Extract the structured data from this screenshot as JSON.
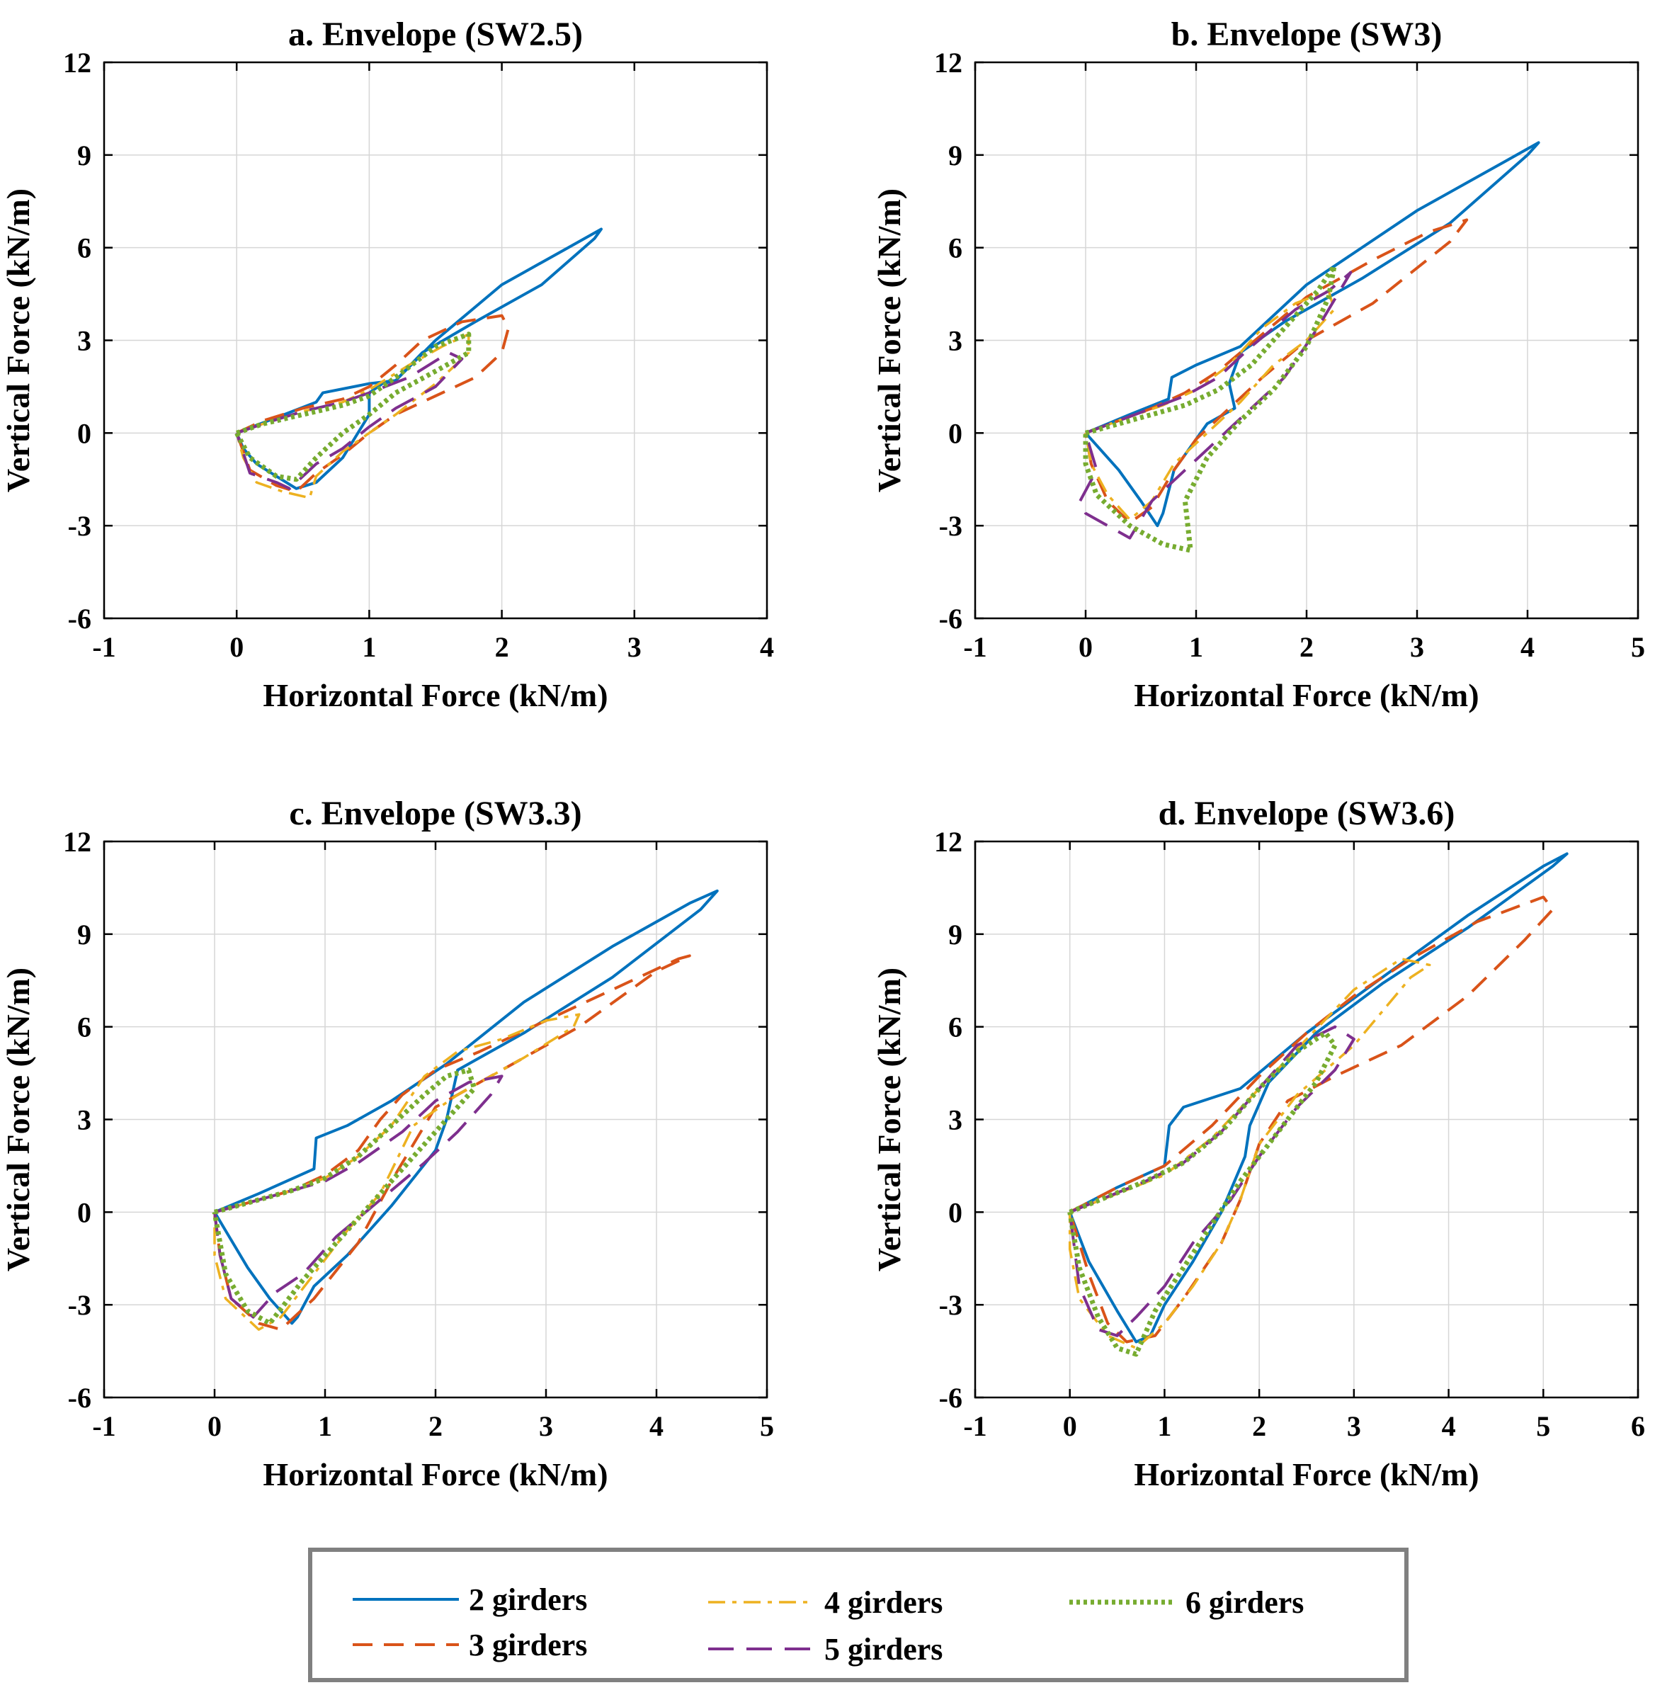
{
  "chart_data": [
    {
      "type": "line",
      "title": "a. Envelope (SW2.5)",
      "xlabel": "Horizontal Force (kN/m)",
      "ylabel": "Vertical Force (kN/m)",
      "xlim": [
        -1,
        4
      ],
      "ylim": [
        -6,
        12
      ],
      "xticks": [
        -1,
        0,
        1,
        2,
        3,
        4
      ],
      "yticks": [
        -6,
        -3,
        0,
        3,
        6,
        9,
        12
      ],
      "grid": true,
      "series": [
        {
          "name": "2 girders",
          "x": [
            0,
            0.3,
            0.6,
            0.65,
            1.0,
            1.2,
            1.5,
            2.0,
            2.5,
            2.75,
            2.7,
            2.3,
            1.8,
            1.4,
            1.2,
            1.1,
            1.0,
            1.0,
            0.8,
            0.6,
            0.45,
            0.3,
            0.15,
            0.05,
            0
          ],
          "y": [
            0,
            0.5,
            1.0,
            1.3,
            1.6,
            1.7,
            3.0,
            4.8,
            6.0,
            6.6,
            6.3,
            4.8,
            3.6,
            2.6,
            1.7,
            1.6,
            1.3,
            0.6,
            -0.8,
            -1.6,
            -1.8,
            -1.4,
            -1.0,
            -0.5,
            0
          ]
        },
        {
          "name": "3 girders",
          "x": [
            0,
            0.2,
            0.5,
            0.8,
            1.0,
            1.2,
            1.4,
            1.7,
            2.0,
            2.05,
            2.0,
            1.8,
            1.5,
            1.2,
            1.0,
            0.8,
            0.6,
            0.45,
            0.3,
            0.1,
            0
          ],
          "y": [
            0,
            0.4,
            0.8,
            1.1,
            1.5,
            2.2,
            3.0,
            3.6,
            3.8,
            3.4,
            2.6,
            1.8,
            1.2,
            0.6,
            0,
            -0.7,
            -1.3,
            -1.9,
            -1.7,
            -1.2,
            0
          ]
        },
        {
          "name": "4 girders",
          "x": [
            0,
            0.2,
            0.5,
            0.8,
            1.0,
            1.3,
            1.55,
            1.75,
            1.75,
            1.5,
            1.2,
            1.0,
            0.8,
            0.6,
            0.55,
            0.35,
            0.15,
            0.05,
            0
          ],
          "y": [
            0,
            0.3,
            0.7,
            1.0,
            1.4,
            2.2,
            2.8,
            3.2,
            2.6,
            1.6,
            0.6,
            0,
            -0.6,
            -1.4,
            -2.1,
            -1.9,
            -1.6,
            -0.8,
            0
          ]
        },
        {
          "name": "5 girders",
          "x": [
            0,
            0.2,
            0.5,
            0.8,
            1.0,
            1.3,
            1.6,
            1.7,
            1.5,
            1.2,
            1.0,
            0.8,
            0.6,
            0.4,
            0.3,
            0.1,
            0
          ],
          "y": [
            0,
            0.3,
            0.7,
            1.0,
            1.3,
            1.8,
            2.6,
            2.4,
            1.5,
            0.8,
            0.2,
            -0.5,
            -1.0,
            -1.8,
            -1.6,
            -1.3,
            0
          ]
        },
        {
          "name": "6 girders",
          "x": [
            0,
            0.2,
            0.5,
            0.8,
            1.0,
            1.2,
            1.5,
            1.75,
            1.75,
            1.5,
            1.2,
            1.0,
            0.8,
            0.6,
            0.45,
            0.3,
            0.1,
            0
          ],
          "y": [
            0,
            0.3,
            0.6,
            0.9,
            1.2,
            1.8,
            2.8,
            3.2,
            2.6,
            2.0,
            1.3,
            0.6,
            0,
            -0.8,
            -1.5,
            -1.4,
            -0.8,
            0
          ]
        }
      ]
    },
    {
      "type": "line",
      "title": "b. Envelope (SW3)",
      "xlabel": "Horizontal Force (kN/m)",
      "ylabel": "Vertical Force (kN/m)",
      "xlim": [
        -1,
        5
      ],
      "ylim": [
        -6,
        12
      ],
      "xticks": [
        -1,
        0,
        1,
        2,
        3,
        4,
        5
      ],
      "yticks": [
        -6,
        -3,
        0,
        3,
        6,
        9,
        12
      ],
      "grid": true,
      "series": [
        {
          "name": "2 girders",
          "x": [
            0,
            0.4,
            0.75,
            0.78,
            1.0,
            1.4,
            2.0,
            3.0,
            3.8,
            4.1,
            4.0,
            3.3,
            2.5,
            1.8,
            1.4,
            1.3,
            1.35,
            1.1,
            0.8,
            0.7,
            0.65,
            0.5,
            0.3,
            0.1,
            0
          ],
          "y": [
            0,
            0.6,
            1.1,
            1.8,
            2.2,
            2.8,
            4.8,
            7.2,
            8.8,
            9.4,
            9.0,
            6.8,
            5.0,
            3.6,
            2.6,
            1.6,
            0.8,
            0.3,
            -1.2,
            -2.6,
            -3.0,
            -2.2,
            -1.2,
            -0.4,
            0
          ]
        },
        {
          "name": "3 girders",
          "x": [
            0,
            0.3,
            0.6,
            0.9,
            1.2,
            1.6,
            2.0,
            2.6,
            3.1,
            3.45,
            3.3,
            2.6,
            2.0,
            1.6,
            1.3,
            1.0,
            0.8,
            0.6,
            0.4,
            0.2,
            0.05,
            0
          ],
          "y": [
            0,
            0.4,
            0.8,
            1.3,
            2.0,
            3.2,
            4.4,
            5.6,
            6.5,
            6.9,
            6.2,
            4.2,
            3.0,
            1.8,
            0.8,
            -0.2,
            -1.2,
            -2.4,
            -2.9,
            -2.2,
            -1.0,
            0
          ]
        },
        {
          "name": "4 girders",
          "x": [
            0,
            0.3,
            0.7,
            1.0,
            1.3,
            1.6,
            1.9,
            2.2,
            2.25,
            2.0,
            1.7,
            1.4,
            1.1,
            0.8,
            0.6,
            0.4,
            0.2,
            0.05,
            0
          ],
          "y": [
            0,
            0.4,
            0.9,
            1.4,
            2.2,
            3.4,
            4.2,
            4.6,
            4.0,
            3.0,
            2.2,
            1.0,
            0,
            -1.0,
            -2.2,
            -2.8,
            -2.0,
            -1.0,
            0
          ]
        },
        {
          "name": "5 girders",
          "x": [
            0,
            0.3,
            0.6,
            0.9,
            1.2,
            1.5,
            1.9,
            2.2,
            2.4,
            2.1,
            1.8,
            1.5,
            1.2,
            0.9,
            0.6,
            0.4,
            0.2,
            0.0,
            -0.05,
            0.1,
            0
          ],
          "y": [
            0,
            0.4,
            0.8,
            1.2,
            1.8,
            2.8,
            4.0,
            4.6,
            5.2,
            3.4,
            1.8,
            0.8,
            -0.2,
            -1.2,
            -2.2,
            -3.4,
            -3.0,
            -2.6,
            -2.2,
            -1.2,
            0
          ]
        },
        {
          "name": "6 girders",
          "x": [
            0,
            0.3,
            0.6,
            0.9,
            1.2,
            1.5,
            1.8,
            2.1,
            2.25,
            2.2,
            2.0,
            1.7,
            1.4,
            1.1,
            0.9,
            0.95,
            0.7,
            0.4,
            0.1,
            0,
            0
          ],
          "y": [
            0,
            0.3,
            0.6,
            0.9,
            1.4,
            2.2,
            3.4,
            4.6,
            5.4,
            4.4,
            2.8,
            1.4,
            0.4,
            -0.8,
            -2.2,
            -3.8,
            -3.6,
            -3.0,
            -2.0,
            -1.0,
            0
          ]
        }
      ]
    },
    {
      "type": "line",
      "title": "c. Envelope (SW3.3)",
      "xlabel": "Horizontal Force (kN/m)",
      "ylabel": "Vertical Force (kN/m)",
      "xlim": [
        -1,
        5
      ],
      "ylim": [
        -6,
        12
      ],
      "xticks": [
        -1,
        0,
        1,
        2,
        3,
        4,
        5
      ],
      "yticks": [
        -6,
        -3,
        0,
        3,
        6,
        9,
        12
      ],
      "grid": true,
      "series": [
        {
          "name": "2 girders",
          "x": [
            0,
            0.4,
            0.9,
            0.92,
            1.2,
            1.6,
            2.1,
            2.8,
            3.6,
            4.3,
            4.55,
            4.4,
            3.6,
            2.8,
            2.2,
            2.1,
            2.0,
            1.6,
            1.2,
            0.9,
            0.75,
            0.7,
            0.5,
            0.3,
            0.1,
            0
          ],
          "y": [
            0,
            0.6,
            1.4,
            2.4,
            2.8,
            3.6,
            4.8,
            6.8,
            8.6,
            10.0,
            10.4,
            9.8,
            7.6,
            5.8,
            4.6,
            3.0,
            2.0,
            0.2,
            -1.4,
            -2.4,
            -3.4,
            -3.6,
            -2.8,
            -1.8,
            -0.6,
            0
          ]
        },
        {
          "name": "3 girders",
          "x": [
            0,
            0.3,
            0.7,
            1.0,
            1.3,
            1.5,
            1.7,
            2.0,
            2.4,
            3.0,
            3.6,
            4.2,
            4.3,
            4.0,
            3.3,
            2.6,
            2.0,
            1.6,
            1.3,
            0.9,
            0.6,
            0.4,
            0.15,
            0.05,
            0
          ],
          "y": [
            0,
            0.3,
            0.7,
            1.2,
            2.0,
            3.0,
            3.8,
            4.6,
            5.2,
            6.2,
            7.2,
            8.2,
            8.3,
            7.8,
            6.0,
            4.6,
            3.4,
            1.0,
            -1.0,
            -2.8,
            -3.8,
            -3.6,
            -2.8,
            -1.4,
            0
          ]
        },
        {
          "name": "4 girders",
          "x": [
            0,
            0.3,
            0.7,
            1.0,
            1.3,
            1.6,
            1.9,
            2.2,
            2.6,
            3.0,
            3.3,
            3.25,
            2.8,
            2.2,
            1.8,
            1.5,
            1.2,
            0.9,
            0.6,
            0.4,
            0.1,
            0.0,
            0
          ],
          "y": [
            0,
            0.3,
            0.7,
            1.1,
            1.8,
            2.8,
            4.4,
            5.2,
            5.6,
            6.2,
            6.4,
            6.0,
            5.0,
            3.8,
            2.8,
            0.6,
            -0.6,
            -2.0,
            -3.4,
            -3.8,
            -2.8,
            -1.4,
            0
          ]
        },
        {
          "name": "5 girders",
          "x": [
            0,
            0.3,
            0.7,
            1.0,
            1.3,
            1.7,
            2.0,
            2.3,
            2.6,
            2.5,
            2.2,
            1.9,
            1.5,
            1.1,
            0.8,
            0.55,
            0.35,
            0.15,
            0.05,
            0
          ],
          "y": [
            0,
            0.3,
            0.7,
            1.0,
            1.6,
            2.6,
            3.6,
            4.2,
            4.4,
            3.8,
            2.6,
            1.6,
            0.4,
            -0.8,
            -2.0,
            -2.6,
            -3.4,
            -2.8,
            -1.4,
            0
          ]
        },
        {
          "name": "6 girders",
          "x": [
            0,
            0.3,
            0.7,
            1.0,
            1.3,
            1.6,
            1.9,
            2.1,
            2.3,
            2.35,
            2.0,
            1.7,
            1.4,
            1.1,
            0.8,
            0.5,
            0.3,
            0.1,
            0
          ],
          "y": [
            0,
            0.3,
            0.7,
            1.1,
            1.8,
            2.8,
            3.8,
            4.4,
            4.6,
            4.0,
            2.6,
            1.4,
            0.2,
            -1.0,
            -2.2,
            -3.6,
            -3.2,
            -2.0,
            0
          ]
        }
      ]
    },
    {
      "type": "line",
      "title": "d. Envelope (SW3.6)",
      "xlabel": "Horizontal Force (kN/m)",
      "ylabel": "Vertical Force (kN/m)",
      "xlim": [
        -1,
        6
      ],
      "ylim": [
        -6,
        12
      ],
      "xticks": [
        -1,
        0,
        1,
        2,
        3,
        4,
        5,
        6
      ],
      "yticks": [
        -6,
        -3,
        0,
        3,
        6,
        9,
        12
      ],
      "grid": true,
      "series": [
        {
          "name": "2 girders",
          "x": [
            0,
            0.5,
            1.0,
            1.05,
            1.2,
            1.8,
            2.5,
            3.3,
            4.2,
            5.0,
            5.25,
            5.1,
            4.2,
            3.3,
            2.6,
            2.1,
            1.9,
            1.85,
            1.6,
            1.3,
            1.0,
            0.85,
            0.7,
            0.5,
            0.2,
            0
          ],
          "y": [
            0,
            0.8,
            1.5,
            2.8,
            3.4,
            4.0,
            5.8,
            7.6,
            9.6,
            11.2,
            11.6,
            11.2,
            9.2,
            7.4,
            5.8,
            4.2,
            2.8,
            1.8,
            0,
            -1.6,
            -3.0,
            -4.0,
            -4.2,
            -3.2,
            -1.6,
            0
          ]
        },
        {
          "name": "3 girders",
          "x": [
            0,
            0.5,
            1.0,
            1.5,
            2.0,
            2.5,
            3.0,
            3.6,
            4.3,
            5.0,
            5.1,
            4.8,
            4.2,
            3.5,
            2.8,
            2.3,
            2.0,
            1.8,
            1.6,
            1.2,
            0.9,
            0.6,
            0.4,
            0.2,
            0
          ],
          "y": [
            0,
            0.8,
            1.5,
            2.8,
            4.4,
            5.8,
            7.0,
            8.2,
            9.4,
            10.2,
            9.8,
            8.8,
            7.0,
            5.4,
            4.4,
            3.6,
            2.2,
            0.4,
            -1.0,
            -2.8,
            -4.0,
            -4.2,
            -3.6,
            -2.0,
            0
          ]
        },
        {
          "name": "4 girders",
          "x": [
            0,
            0.5,
            1.0,
            1.5,
            2.0,
            2.5,
            3.0,
            3.5,
            3.8,
            3.6,
            3.0,
            2.4,
            2.0,
            1.8,
            1.6,
            1.3,
            1.0,
            0.7,
            0.4,
            0.1,
            0.0,
            0
          ],
          "y": [
            0,
            0.6,
            1.2,
            2.4,
            4.0,
            5.6,
            7.2,
            8.2,
            8.0,
            7.6,
            5.4,
            3.8,
            2.2,
            0.4,
            -1.0,
            -2.4,
            -3.6,
            -4.4,
            -4.0,
            -2.8,
            -1.2,
            0
          ]
        },
        {
          "name": "5 girders",
          "x": [
            0,
            0.4,
            0.8,
            1.2,
            1.6,
            2.0,
            2.4,
            2.8,
            3.0,
            2.8,
            2.4,
            2.0,
            1.7,
            1.3,
            1.0,
            0.7,
            0.5,
            0.3,
            0.1,
            0
          ],
          "y": [
            0,
            0.5,
            1.0,
            1.6,
            2.6,
            4.0,
            5.4,
            6.0,
            5.6,
            4.6,
            3.4,
            1.8,
            0.4,
            -1.0,
            -2.4,
            -3.4,
            -4.0,
            -3.8,
            -2.4,
            0
          ]
        },
        {
          "name": "6 girders",
          "x": [
            0,
            0.4,
            0.8,
            1.2,
            1.6,
            2.0,
            2.4,
            2.7,
            2.8,
            2.6,
            2.2,
            1.8,
            1.5,
            1.2,
            0.9,
            0.7,
            0.5,
            0.3,
            0.1,
            0
          ],
          "y": [
            0,
            0.5,
            1.0,
            1.6,
            2.6,
            4.0,
            5.2,
            5.8,
            5.4,
            4.2,
            2.6,
            1.0,
            -0.4,
            -1.8,
            -3.2,
            -4.6,
            -4.4,
            -3.4,
            -1.8,
            0
          ]
        }
      ]
    }
  ],
  "legend": {
    "placement": "bottom-center",
    "items": [
      {
        "label": "2 girders",
        "color": "#0072BD",
        "style": "solid"
      },
      {
        "label": "3 girders",
        "color": "#D95319",
        "style": "dashed"
      },
      {
        "label": "4 girders",
        "color": "#EDB120",
        "style": "dashdot"
      },
      {
        "label": "5 girders",
        "color": "#7E2F8E",
        "style": "longdash"
      },
      {
        "label": "6 girders",
        "color": "#77AC30",
        "style": "dotted"
      }
    ]
  },
  "colors": {
    "grid": "#d6d6d6",
    "axis": "#000000",
    "legend_border": "#808080"
  }
}
